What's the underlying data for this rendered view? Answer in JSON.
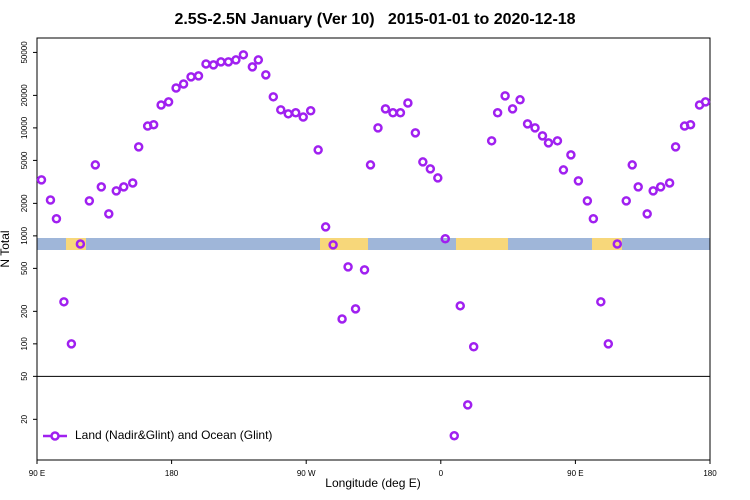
{
  "chart_data": {
    "type": "scatter",
    "title": "2.5S-2.5N January (Ver 10)   2015-01-01 to 2020-12-18",
    "x_label": "Longitude (deg E)",
    "y_label": "N Total",
    "xlim": [
      90,
      540
    ],
    "xticks": [
      {
        "value": 90,
        "label": "90 E"
      },
      {
        "value": 180,
        "label": "180"
      },
      {
        "value": 270,
        "label": "90 W"
      },
      {
        "value": 360,
        "label": "0"
      },
      {
        "value": 450,
        "label": "90 E"
      },
      {
        "value": 540,
        "label": "180"
      }
    ],
    "ylim": [
      8.4,
      68000
    ],
    "log_y": true,
    "yticks": [
      20,
      50,
      100,
      200,
      500,
      1000,
      2000,
      5000,
      10000,
      20000,
      50000
    ],
    "hline": 50,
    "legend": "bottom-left",
    "x": [
      93,
      99,
      103,
      108,
      113,
      119,
      125,
      129,
      133,
      138,
      143,
      148,
      154,
      158,
      164,
      168,
      173,
      178,
      183,
      188,
      193,
      198,
      203,
      208,
      213,
      218,
      223,
      228,
      234,
      238,
      243,
      248,
      253,
      258,
      263,
      268,
      273,
      278,
      283,
      288,
      294,
      298,
      303,
      309,
      313,
      318,
      323,
      328,
      333,
      338,
      343,
      348,
      353,
      358,
      363,
      369,
      373,
      378,
      382,
      394,
      398,
      403,
      408,
      413,
      418,
      423,
      428,
      432,
      438,
      442,
      447,
      452,
      458,
      462,
      467,
      472,
      478,
      484,
      488,
      492,
      498,
      502,
      507,
      513,
      517,
      523,
      527,
      533,
      537
    ],
    "series": [
      {
        "name": "Land (Nadir&Glint) and Ocean (Glint)",
        "color": "#a020f0",
        "values": [
          3300,
          2150,
          1440,
          245,
          100,
          840,
          2110,
          4540,
          2840,
          1600,
          2610,
          2840,
          3090,
          6670,
          10400,
          10700,
          16300,
          17400,
          23400,
          25500,
          29700,
          30300,
          39100,
          38300,
          40900,
          40900,
          42600,
          47500,
          36700,
          42600,
          31000,
          19400,
          14700,
          13500,
          13800,
          12600,
          14400,
          6250,
          1210,
          825,
          170,
          516,
          211,
          484,
          4540,
          10000,
          15000,
          13800,
          13800,
          17000,
          9000,
          4840,
          4170,
          3440,
          940,
          14.1,
          225,
          27.2,
          94,
          7590,
          13800,
          19800,
          15000,
          18200,
          10900,
          10000,
          8430,
          7260,
          7590,
          4080,
          5620,
          3230,
          2110,
          1440,
          245,
          100,
          840,
          2110,
          4540,
          2840,
          1600,
          2610,
          2840,
          3090,
          6670,
          10400,
          10700,
          16300,
          17400
        ]
      }
    ]
  }
}
